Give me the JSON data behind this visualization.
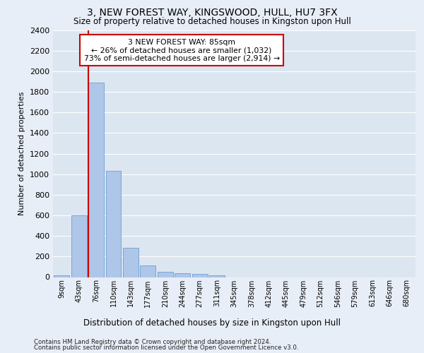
{
  "title": "3, NEW FOREST WAY, KINGSWOOD, HULL, HU7 3FX",
  "subtitle": "Size of property relative to detached houses in Kingston upon Hull",
  "xlabel_bottom": "Distribution of detached houses by size in Kingston upon Hull",
  "ylabel": "Number of detached properties",
  "footer_line1": "Contains HM Land Registry data © Crown copyright and database right 2024.",
  "footer_line2": "Contains public sector information licensed under the Open Government Licence v3.0.",
  "bar_labels": [
    "9sqm",
    "43sqm",
    "76sqm",
    "110sqm",
    "143sqm",
    "177sqm",
    "210sqm",
    "244sqm",
    "277sqm",
    "311sqm",
    "345sqm",
    "378sqm",
    "412sqm",
    "445sqm",
    "479sqm",
    "512sqm",
    "546sqm",
    "579sqm",
    "613sqm",
    "646sqm",
    "680sqm"
  ],
  "bar_values": [
    20,
    600,
    1890,
    1030,
    285,
    115,
    50,
    40,
    30,
    20,
    0,
    0,
    0,
    0,
    0,
    0,
    0,
    0,
    0,
    0,
    0
  ],
  "bar_color": "#aec6e8",
  "bar_edge_color": "#6b9fd4",
  "annotation_title": "3 NEW FOREST WAY: 85sqm",
  "annotation_line1": "← 26% of detached houses are smaller (1,032)",
  "annotation_line2": "73% of semi-detached houses are larger (2,914) →",
  "annotation_box_color": "#ffffff",
  "annotation_box_edge_color": "#cc0000",
  "vline_color": "#cc0000",
  "ylim": [
    0,
    2400
  ],
  "yticks": [
    0,
    200,
    400,
    600,
    800,
    1000,
    1200,
    1400,
    1600,
    1800,
    2000,
    2200,
    2400
  ],
  "bg_color": "#e8eef7",
  "plot_bg_color": "#dce6f1",
  "grid_color": "#ffffff"
}
